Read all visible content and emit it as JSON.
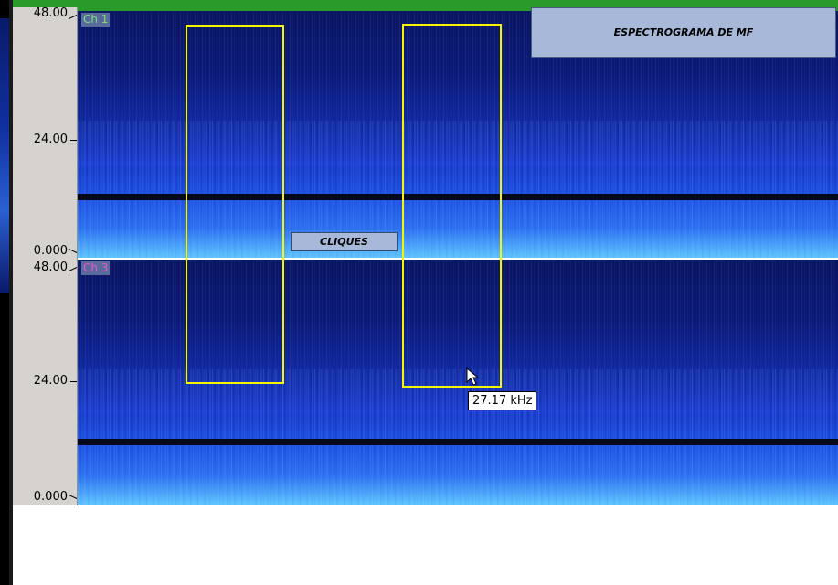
{
  "title_box": {
    "label": "ESPECTROGRAMA DE MF"
  },
  "annotation": {
    "label": "CLIQUES"
  },
  "tooltip": {
    "text": "27.17 kHz"
  },
  "axis": {
    "top_panel": {
      "max": "48.00",
      "mid": "24.00",
      "min": "0.000"
    },
    "bottom_panel": {
      "max": "48.00",
      "mid": "24.00",
      "min": "0.000"
    }
  },
  "channels": [
    {
      "label": "Ch 1",
      "color": "#7be07b"
    },
    {
      "label": "Ch 3",
      "color": "#e05ad0"
    }
  ],
  "colors": {
    "selection": "#f5f500",
    "label_box": "#a7b8d8",
    "ruler": "#d6d3ce"
  }
}
